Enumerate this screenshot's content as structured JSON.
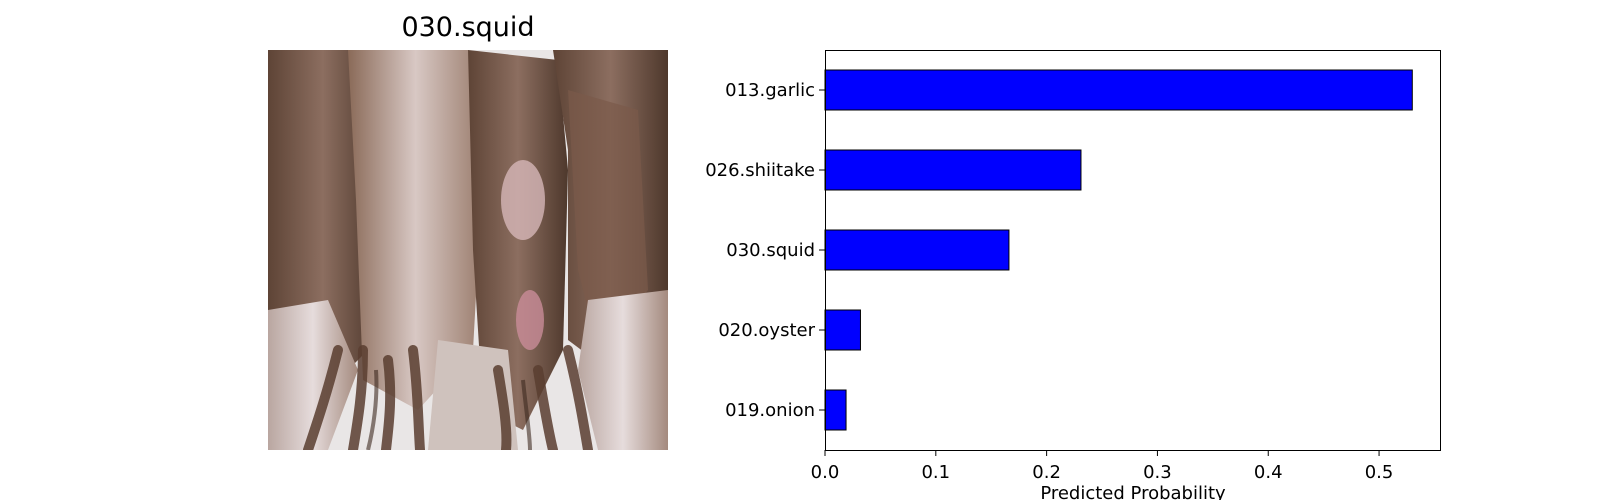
{
  "image_panel": {
    "title": "030.squid",
    "subject_icon": "squid-photo"
  },
  "chart_data": {
    "type": "bar",
    "orientation": "horizontal",
    "title": "",
    "categories": [
      "013.garlic",
      "026.shiitake",
      "030.squid",
      "020.oyster",
      "019.onion"
    ],
    "values": [
      0.53,
      0.231,
      0.166,
      0.032,
      0.019
    ],
    "xlabel": "Predicted Probability",
    "ylabel": "",
    "xlim": [
      0,
      0.555
    ],
    "xticks": [
      0.0,
      0.1,
      0.2,
      0.3,
      0.4,
      0.5
    ],
    "xtick_labels": [
      "0.0",
      "0.1",
      "0.2",
      "0.3",
      "0.4",
      "0.5"
    ],
    "bar_color": "#0000ff",
    "edge_color": "#000000",
    "grid": false,
    "legend": "none"
  }
}
